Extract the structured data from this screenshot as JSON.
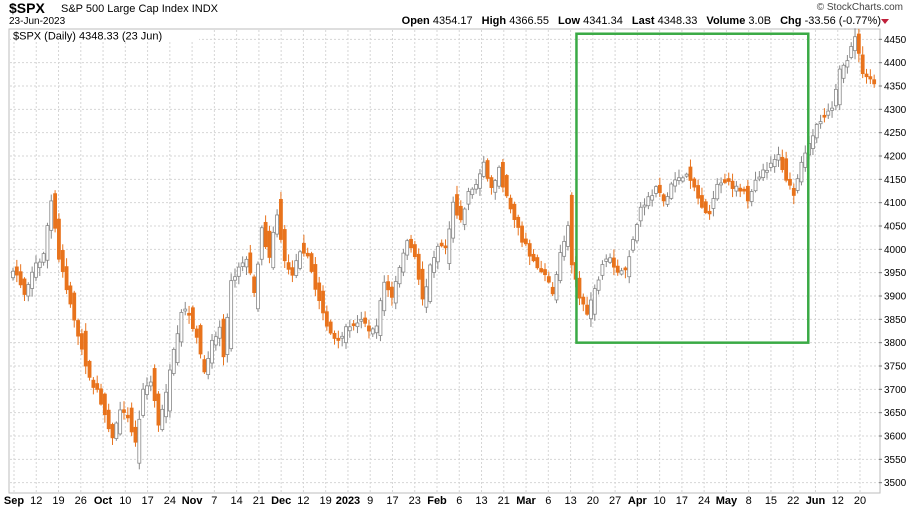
{
  "header": {
    "ticker": "$SPX",
    "name": "S&P 500 Large Cap Index",
    "exchange": "INDX",
    "date": "23-Jun-2023",
    "brand": "© StockCharts.com",
    "open_label": "Open",
    "open": "4354.17",
    "high_label": "High",
    "high": "4366.55",
    "low_label": "Low",
    "low": "4341.34",
    "last_label": "Last",
    "last": "4348.33",
    "volume_label": "Volume",
    "volume": "3.0B",
    "chg_label": "Chg",
    "chg": "-33.56 (-0.77%)"
  },
  "legend": "$SPX (Daily) 4348.33 (23 Jun)",
  "colors": {
    "up": "#888888",
    "down": "#e8731c",
    "box": "#3aaa45",
    "grid": "#d6d6d6",
    "chg": "#c01f3a"
  },
  "chart_data": {
    "type": "candlestick",
    "title": "$SPX (Daily) 4348.33 (23 Jun)",
    "y_ticks": [
      3500,
      3550,
      3600,
      3650,
      3700,
      3750,
      3800,
      3850,
      3900,
      3950,
      4000,
      4050,
      4100,
      4150,
      4200,
      4250,
      4300,
      4350,
      4400,
      4450
    ],
    "ylim": [
      3480,
      4470
    ],
    "x_ticks": [
      {
        "label": "Sep",
        "major": true
      },
      {
        "label": "12"
      },
      {
        "label": "19"
      },
      {
        "label": "26"
      },
      {
        "label": "Oct",
        "major": true
      },
      {
        "label": "10"
      },
      {
        "label": "17"
      },
      {
        "label": "24"
      },
      {
        "label": "Nov",
        "major": true
      },
      {
        "label": "7"
      },
      {
        "label": "14"
      },
      {
        "label": "21"
      },
      {
        "label": "Dec",
        "major": true
      },
      {
        "label": "12"
      },
      {
        "label": "19"
      },
      {
        "label": "2023",
        "major": true
      },
      {
        "label": "9"
      },
      {
        "label": "17"
      },
      {
        "label": "23"
      },
      {
        "label": "Feb",
        "major": true
      },
      {
        "label": "6"
      },
      {
        "label": "13"
      },
      {
        "label": "21"
      },
      {
        "label": "Mar",
        "major": true
      },
      {
        "label": "6"
      },
      {
        "label": "13"
      },
      {
        "label": "20"
      },
      {
        "label": "27"
      },
      {
        "label": "Apr",
        "major": true
      },
      {
        "label": "10"
      },
      {
        "label": "17"
      },
      {
        "label": "24"
      },
      {
        "label": "May",
        "major": true
      },
      {
        "label": "8"
      },
      {
        "label": "15"
      },
      {
        "label": "22"
      },
      {
        "label": "Jun",
        "major": true
      },
      {
        "label": "12"
      },
      {
        "label": "20"
      }
    ],
    "highlight_box": {
      "from_session": 148,
      "to_session": 207,
      "low": 3800,
      "high": 4462
    },
    "close_path": [
      [
        0,
        3960
      ],
      [
        3,
        3905
      ],
      [
        6,
        3965
      ],
      [
        8,
        3990
      ],
      [
        10,
        4110
      ],
      [
        12,
        3980
      ],
      [
        15,
        3880
      ],
      [
        18,
        3790
      ],
      [
        20,
        3720
      ],
      [
        22,
        3700
      ],
      [
        24,
        3640
      ],
      [
        26,
        3600
      ],
      [
        28,
        3650
      ],
      [
        30,
        3640
      ],
      [
        32,
        3585
      ],
      [
        34,
        3695
      ],
      [
        36,
        3720
      ],
      [
        38,
        3630
      ],
      [
        40,
        3690
      ],
      [
        42,
        3780
      ],
      [
        44,
        3870
      ],
      [
        46,
        3860
      ],
      [
        48,
        3810
      ],
      [
        50,
        3740
      ],
      [
        52,
        3800
      ],
      [
        54,
        3830
      ],
      [
        55,
        3765
      ],
      [
        57,
        3930
      ],
      [
        59,
        3960
      ],
      [
        61,
        3980
      ],
      [
        63,
        3910
      ],
      [
        65,
        4040
      ],
      [
        67,
        3985
      ],
      [
        69,
        4080
      ],
      [
        71,
        3970
      ],
      [
        73,
        3940
      ],
      [
        75,
        4000
      ],
      [
        77,
        3990
      ],
      [
        79,
        3920
      ],
      [
        81,
        3860
      ],
      [
        83,
        3820
      ],
      [
        85,
        3810
      ],
      [
        87,
        3830
      ],
      [
        89,
        3840
      ],
      [
        91,
        3850
      ],
      [
        93,
        3820
      ],
      [
        95,
        3840
      ],
      [
        97,
        3930
      ],
      [
        99,
        3900
      ],
      [
        101,
        3960
      ],
      [
        103,
        4020
      ],
      [
        105,
        3990
      ],
      [
        107,
        3890
      ],
      [
        109,
        3960
      ],
      [
        111,
        4010
      ],
      [
        113,
        4000
      ],
      [
        115,
        4100
      ],
      [
        117,
        4060
      ],
      [
        119,
        4120
      ],
      [
        121,
        4140
      ],
      [
        123,
        4180
      ],
      [
        125,
        4130
      ],
      [
        127,
        4170
      ],
      [
        129,
        4110
      ],
      [
        131,
        4060
      ],
      [
        133,
        4020
      ],
      [
        135,
        3990
      ],
      [
        137,
        3960
      ],
      [
        139,
        3940
      ],
      [
        141,
        3910
      ],
      [
        143,
        3990
      ],
      [
        145,
        4050
      ],
      [
        146,
        3960
      ],
      [
        148,
        3900
      ],
      [
        150,
        3860
      ],
      [
        152,
        3910
      ],
      [
        154,
        3970
      ],
      [
        156,
        3980
      ],
      [
        158,
        3950
      ],
      [
        160,
        3960
      ],
      [
        162,
        4020
      ],
      [
        164,
        4090
      ],
      [
        166,
        4110
      ],
      [
        168,
        4130
      ],
      [
        170,
        4100
      ],
      [
        172,
        4140
      ],
      [
        174,
        4150
      ],
      [
        176,
        4160
      ],
      [
        178,
        4130
      ],
      [
        180,
        4090
      ],
      [
        182,
        4080
      ],
      [
        184,
        4140
      ],
      [
        186,
        4150
      ],
      [
        188,
        4130
      ],
      [
        190,
        4130
      ],
      [
        192,
        4110
      ],
      [
        194,
        4150
      ],
      [
        196,
        4170
      ],
      [
        198,
        4180
      ],
      [
        200,
        4200
      ],
      [
        202,
        4150
      ],
      [
        204,
        4120
      ],
      [
        206,
        4180
      ],
      [
        208,
        4220
      ],
      [
        210,
        4270
      ],
      [
        212,
        4290
      ],
      [
        214,
        4300
      ],
      [
        216,
        4380
      ],
      [
        218,
        4410
      ],
      [
        220,
        4450
      ],
      [
        222,
        4380
      ],
      [
        224,
        4360
      ],
      [
        225,
        4348
      ]
    ]
  }
}
